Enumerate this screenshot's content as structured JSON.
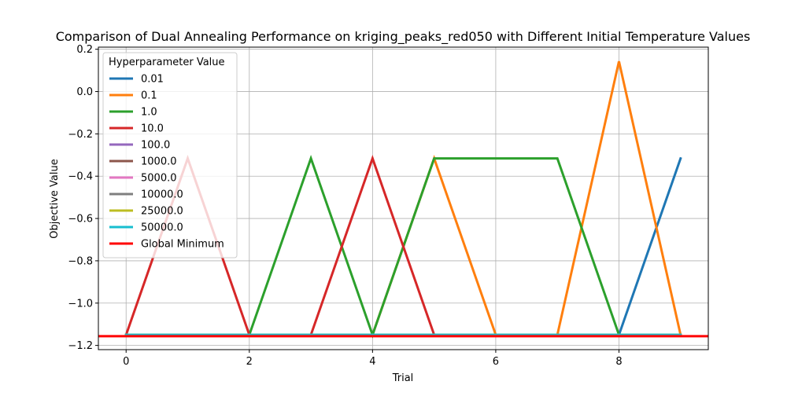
{
  "chart_data": {
    "type": "line",
    "title": "Comparison of Dual Annealing Performance on kriging_peaks_red050 with Different Initial Temperature Values",
    "xlabel": "Trial",
    "ylabel": "Objective Value",
    "xlim": [
      -0.45,
      9.45
    ],
    "ylim": [
      -1.22,
      0.21
    ],
    "xticks": [
      0,
      2,
      4,
      6,
      8
    ],
    "xtick_labels": [
      "0",
      "2",
      "4",
      "6",
      "8"
    ],
    "yticks": [
      -1.2,
      -1.0,
      -0.8,
      -0.6,
      -0.4,
      -0.2,
      0.0,
      0.2
    ],
    "ytick_labels": [
      "−1.2",
      "−1.0",
      "−0.8",
      "−0.6",
      "−0.4",
      "−0.2",
      "0.0",
      "0.2"
    ],
    "grid": true,
    "legend_title": "Hyperparameter Value",
    "legend_position": "top-left",
    "x": [
      0,
      1,
      2,
      3,
      4,
      5,
      6,
      7,
      8,
      9
    ],
    "series": [
      {
        "name": "0.01",
        "color": "#1f77b4",
        "values": [
          -1.15,
          -1.15,
          -1.15,
          -1.15,
          -1.15,
          -1.15,
          -1.15,
          -1.15,
          -1.15,
          -0.316
        ]
      },
      {
        "name": "0.1",
        "color": "#ff7f0e",
        "values": [
          -1.15,
          -1.15,
          -1.15,
          -1.15,
          -1.15,
          -0.316,
          -1.15,
          -1.15,
          0.143,
          -1.15
        ]
      },
      {
        "name": "1.0",
        "color": "#2ca02c",
        "values": [
          -1.15,
          -1.15,
          -1.15,
          -0.316,
          -1.15,
          -0.316,
          -0.316,
          -0.316,
          -1.15,
          -1.15
        ]
      },
      {
        "name": "10.0",
        "color": "#d62728",
        "values": [
          -1.15,
          -0.316,
          -1.15,
          -1.15,
          -0.316,
          -1.15,
          -1.15,
          -1.15,
          -1.15,
          -1.15
        ]
      },
      {
        "name": "100.0",
        "color": "#9467bd",
        "values": [
          -1.15,
          -1.15,
          -1.15,
          -1.15,
          -1.15,
          -1.15,
          -1.15,
          -1.15,
          -1.15,
          -1.15
        ]
      },
      {
        "name": "1000.0",
        "color": "#8c564b",
        "values": [
          -1.15,
          -1.15,
          -1.15,
          -1.15,
          -1.15,
          -1.15,
          -1.15,
          -1.15,
          -1.15,
          -1.15
        ]
      },
      {
        "name": "5000.0",
        "color": "#e377c2",
        "values": [
          -1.15,
          -1.15,
          -1.15,
          -1.15,
          -1.15,
          -1.15,
          -1.15,
          -1.15,
          -1.15,
          -1.15
        ]
      },
      {
        "name": "10000.0",
        "color": "#7f7f7f",
        "values": [
          -1.15,
          -1.15,
          -1.15,
          -1.15,
          -1.15,
          -1.15,
          -1.15,
          -1.15,
          -1.15,
          -1.15
        ]
      },
      {
        "name": "25000.0",
        "color": "#bcbd22",
        "values": [
          -1.15,
          -1.15,
          -1.15,
          -1.15,
          -1.15,
          -1.15,
          -1.15,
          -1.15,
          -1.15,
          -1.15
        ]
      },
      {
        "name": "50000.0",
        "color": "#17becf",
        "values": [
          -1.15,
          -1.15,
          -1.15,
          -1.15,
          -1.15,
          -1.15,
          -1.15,
          -1.15,
          -1.15,
          -1.15
        ]
      }
    ],
    "reference_line": {
      "name": "Global Minimum",
      "color": "#ff0000",
      "value": -1.1563
    }
  }
}
